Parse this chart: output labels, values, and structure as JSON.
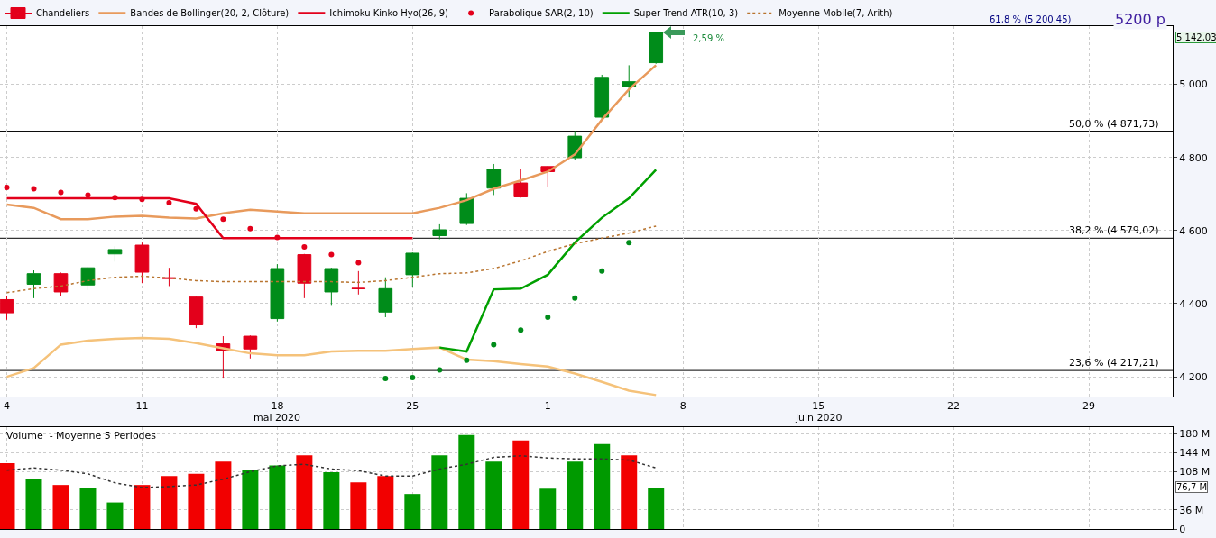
{
  "chart_data": [
    {
      "type": "candlestick",
      "legend": "top left",
      "grid": true,
      "marker": "none",
      "categories": [
        "4",
        null,
        null,
        null,
        null,
        "11",
        null,
        null,
        null,
        null,
        "18",
        null,
        null,
        null,
        null,
        "25",
        null,
        null,
        null,
        null,
        "1",
        null,
        null,
        null,
        null,
        "8",
        null,
        null,
        null,
        null,
        "15",
        null,
        null,
        null,
        null,
        "22",
        null,
        null,
        null,
        null,
        "29",
        null,
        null,
        null
      ],
      "ylim": [
        4146,
        5159
      ],
      "yticks": [
        {
          "value": 4200,
          "label": "4 200"
        },
        {
          "value": 4400,
          "label": "4 400"
        },
        {
          "value": 4600,
          "label": "4 600"
        },
        {
          "value": 4800,
          "label": "4 800"
        },
        {
          "value": 5000,
          "label": "5 000"
        }
      ],
      "series": [
        {
          "name": "Chandeliers",
          "ohlc": [
            [
              4411,
              4422,
              4356,
              4375
            ],
            [
              4453,
              4491,
              4415,
              4482
            ],
            [
              4482,
              4485,
              4420,
              4432
            ],
            [
              4451,
              4501,
              4437,
              4498
            ],
            [
              4536,
              4557,
              4515,
              4548
            ],
            [
              4560,
              4567,
              4456,
              4486
            ],
            [
              4471,
              4498,
              4448,
              4469
            ],
            [
              4418,
              4420,
              4333,
              4342
            ],
            [
              4290,
              4311,
              4195,
              4271
            ],
            [
              4311,
              4313,
              4250,
              4276
            ],
            [
              4359,
              4508,
              4351,
              4496
            ],
            [
              4534,
              4536,
              4415,
              4456
            ],
            [
              4432,
              4498,
              4394,
              4496
            ],
            [
              4442,
              4489,
              4425,
              4441
            ],
            [
              4377,
              4472,
              4363,
              4441
            ],
            [
              4479,
              4540,
              4446,
              4538
            ],
            [
              4586,
              4617,
              4576,
              4602
            ],
            [
              4619,
              4702,
              4615,
              4688
            ],
            [
              4716,
              4782,
              4697,
              4768
            ],
            [
              4730,
              4768,
              4690,
              4692
            ],
            [
              4775,
              4777,
              4718,
              4761
            ],
            [
              4799,
              4872,
              4792,
              4858
            ],
            [
              4910,
              5026,
              4905,
              5019
            ],
            [
              4993,
              5052,
              4964,
              5007
            ],
            [
              5059,
              5142,
              5056,
              5142
            ],
            null,
            null,
            null,
            null,
            null,
            null,
            null,
            null,
            null,
            null,
            null,
            null,
            null,
            null,
            null,
            null,
            null,
            null,
            null
          ],
          "colors": [
            "#e3001b",
            "#008c1a",
            "#e3001b",
            "#008c1a",
            "#008c1a",
            "#e3001b",
            "#e3001b",
            "#e3001b",
            "#e3001b",
            "#e3001b",
            "#008c1a",
            "#e3001b",
            "#008c1a",
            "#e3001b",
            "#008c1a",
            "#008c1a",
            "#008c1a",
            "#008c1a",
            "#008c1a",
            "#e3001b",
            "#e3001b",
            "#008c1a",
            "#008c1a",
            "#008c1a",
            "#008c1a",
            null,
            null,
            null,
            null,
            null,
            null,
            null,
            null,
            null,
            null,
            null,
            null,
            null,
            null,
            null,
            null,
            null,
            null,
            null
          ]
        },
        {
          "name": "Bandes de Bollinger(20, 2, Clôture)",
          "type": "line",
          "color": "#e89a5c",
          "values": [
            4671,
            4662,
            4631,
            4631,
            4638,
            4640,
            4635,
            4633,
            4647,
            4657,
            4652,
            4647,
            4647,
            4647,
            4647,
            4647,
            4662,
            4683,
            4714,
            4737,
            4761,
            4808,
            4903,
            4986,
            5052,
            null,
            null,
            null,
            null,
            null,
            null,
            null,
            null,
            null,
            null,
            null,
            null,
            null,
            null,
            null,
            null,
            null,
            null,
            null
          ]
        },
        {
          "type": "line",
          "color": "#f5c27a",
          "values": [
            4200,
            4224,
            4288,
            4299,
            4304,
            4306,
            4304,
            4292,
            4278,
            4264,
            4259,
            4259,
            4269,
            4271,
            4271,
            4276,
            4280,
            4247,
            4243,
            4235,
            4228,
            4209,
            4186,
            4162,
            4150,
            null,
            null,
            null,
            null,
            null,
            null,
            null,
            null,
            null,
            null,
            null,
            null,
            null,
            null,
            null,
            null,
            null,
            null,
            null
          ]
        },
        {
          "name": "Ichimoku Kinko Hyo(26, 9)",
          "type": "line",
          "color": "#e3001b",
          "values": [
            4688,
            4688,
            4688,
            4688,
            4688,
            4688,
            4688,
            4673,
            4579,
            4579,
            4579,
            4579,
            4579,
            4579,
            4579,
            4579,
            null,
            null,
            null,
            null,
            null,
            null,
            null,
            null,
            null,
            null,
            null,
            null,
            null,
            null,
            null,
            null,
            null,
            null,
            null,
            null,
            null,
            null,
            null,
            null,
            null,
            null,
            null,
            null
          ]
        },
        {
          "name": "Parabolique SAR(2, 10)",
          "type": "scatter",
          "marker": "circle",
          "colors": [
            "#e3001b",
            "#e3001b",
            "#e3001b",
            "#e3001b",
            "#e3001b",
            "#e3001b",
            "#e3001b",
            "#e3001b",
            "#e3001b",
            "#e3001b",
            "#e3001b",
            "#e3001b",
            "#e3001b",
            "#e3001b",
            "#008c1a",
            "#008c1a",
            "#008c1a",
            "#008c1a",
            "#008c1a",
            "#008c1a",
            "#008c1a",
            "#008c1a",
            "#008c1a",
            "#008c1a",
            null,
            null,
            null,
            null,
            null,
            null,
            null,
            null,
            null,
            null,
            null,
            null,
            null,
            null,
            null,
            null,
            null,
            null,
            null,
            null
          ],
          "values": [
            4718,
            4714,
            4704,
            4697,
            4690,
            4685,
            4676,
            4659,
            4631,
            4605,
            4581,
            4555,
            4534,
            4512,
            4195,
            4198,
            4219,
            4245,
            4288,
            4328,
            4363,
            4415,
            4489,
            4567,
            null,
            null,
            null,
            null,
            null,
            null,
            null,
            null,
            null,
            null,
            null,
            null,
            null,
            null,
            null,
            null,
            null,
            null,
            null,
            null
          ]
        },
        {
          "name": "Super Trend ATR(10, 3)",
          "type": "line",
          "color": "#00a000",
          "values": [
            null,
            null,
            null,
            null,
            null,
            null,
            null,
            null,
            null,
            null,
            null,
            null,
            null,
            null,
            null,
            null,
            4280,
            4269,
            4439,
            4441,
            4479,
            4567,
            4635,
            4688,
            4766,
            null,
            null,
            null,
            null,
            null,
            null,
            null,
            null,
            null,
            null,
            null,
            null,
            null,
            null,
            null,
            null,
            null,
            null,
            null
          ]
        },
        {
          "name": "Moyenne Mobile(7, Arith)",
          "type": "line",
          "color": "#b8742f",
          "line_style": "dotted",
          "values": [
            4430,
            4441,
            4448,
            4463,
            4472,
            4475,
            4470,
            4463,
            4460,
            4460,
            4460,
            4460,
            4460,
            4458,
            4463,
            4472,
            4482,
            4484,
            4496,
            4517,
            4543,
            4564,
            4579,
            4593,
            4612,
            null,
            null,
            null,
            null,
            null,
            null,
            null,
            null,
            null,
            null,
            null,
            null,
            null,
            null,
            null,
            null,
            null,
            null,
            null
          ]
        }
      ],
      "ref_lines": [
        {
          "axis": "y",
          "value": 4871.73,
          "label": "50,0 % (4 871,73)",
          "color": "#000000"
        },
        {
          "axis": "y",
          "value": 4579.02,
          "label": "38,2 % (4 579,02)",
          "color": "#000000"
        },
        {
          "axis": "y",
          "value": 4217.21,
          "label": "23,6 % (4 217,21)",
          "color": "#000000"
        }
      ],
      "annotations": [
        "61,8 % (5 200,45)",
        "5200 p",
        "2,59 %",
        "mai 2020",
        "juin 2020",
        "5 142,03"
      ]
    },
    {
      "type": "bar",
      "title": "Volume  - Moyenne 5 Periodes",
      "grid": true,
      "legend": false,
      "tick_labels": "y",
      "marker": "none",
      "categories": [
        "4",
        null,
        null,
        null,
        null,
        "11",
        null,
        null,
        null,
        null,
        "18",
        null,
        null,
        null,
        null,
        "25",
        null,
        null,
        null,
        null,
        "1",
        null,
        null,
        null,
        null,
        "8",
        null,
        null,
        null,
        null,
        "15",
        null,
        null,
        null,
        null,
        "22",
        null,
        null,
        null,
        null,
        "29",
        null,
        null,
        null
      ],
      "ylim": [
        0,
        192
      ],
      "yticks": [
        0,
        {
          "value": 36,
          "label": "36 M"
        },
        {
          "value": 108,
          "label": "108 M"
        },
        {
          "value": 144,
          "label": "144 M"
        },
        {
          "value": 180,
          "label": "180 M"
        }
      ],
      "series": [
        {
          "colors": [
            "#f20000",
            "#009a00",
            "#f20000",
            "#009a00",
            "#009a00",
            "#f20000",
            "#f20000",
            "#f20000",
            "#f20000",
            "#009a00",
            "#009a00",
            "#f20000",
            "#009a00",
            "#f20000",
            "#f20000",
            "#009a00",
            "#009a00",
            "#009a00",
            "#009a00",
            "#f20000",
            "#009a00",
            "#009a00",
            "#009a00",
            "#f20000",
            "#009a00",
            null,
            null,
            null,
            null,
            null,
            null,
            null,
            null,
            null,
            null,
            null,
            null,
            null,
            null,
            null,
            null,
            null,
            null,
            null
          ],
          "values": [
            124,
            94,
            83,
            78,
            50,
            83,
            100,
            104,
            127,
            111,
            120,
            139,
            107,
            88,
            100,
            66,
            139,
            177,
            127,
            167,
            76,
            127,
            160,
            139,
            76.7,
            null,
            null,
            null,
            null,
            null,
            null,
            null,
            null,
            null,
            null,
            null,
            null,
            null,
            null,
            null,
            null,
            null,
            null,
            null
          ]
        },
        {
          "type": "line",
          "color": "#333333",
          "line_style": "dotted",
          "values": [
            111,
            115,
            111,
            104,
            87,
            78,
            80,
            83,
            94,
            108,
            119,
            122,
            113,
            110,
            100,
            100,
            113,
            122,
            135,
            138,
            134,
            132,
            132,
            130,
            115,
            null,
            null,
            null,
            null,
            null,
            null,
            null,
            null,
            null,
            null,
            null,
            null,
            null,
            null,
            null,
            null,
            null,
            null,
            null
          ]
        }
      ],
      "annotations": [
        "76,7 M"
      ]
    }
  ]
}
